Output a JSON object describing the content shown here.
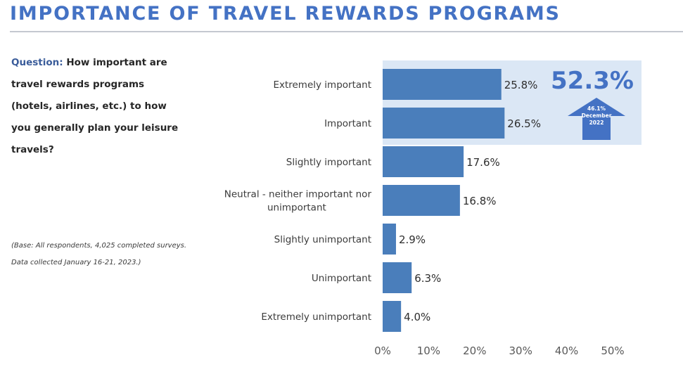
{
  "title": "IMPORTANCE OF TRAVEL REWARDS PROGRAMS",
  "question": {
    "label": "Question:",
    "text": " How important are travel rewards programs (hotels, airlines, etc.) to how you generally plan your leisure travels?"
  },
  "base_note": {
    "line1": "(Base: All respondents, 4,025 completed surveys.",
    "line2": "Data collected January 16-21, 2023.)"
  },
  "colors": {
    "title": "#4472c4",
    "bar": "#4a7ebb",
    "highlight": "#dbe7f5",
    "callout": "#4472c4"
  },
  "callout": {
    "value": "52.3%",
    "arrow_lines": [
      "46.1%",
      "December",
      "2022"
    ]
  },
  "chart_data": {
    "type": "bar",
    "orientation": "horizontal",
    "categories": [
      "Extremely important",
      "Important",
      "Slightly important",
      "Neutral -  neither important nor unimportant",
      "Slightly unimportant",
      "Unimportant",
      "Extremely unimportant"
    ],
    "values": [
      25.8,
      26.5,
      17.6,
      16.8,
      2.9,
      6.3,
      4.0
    ],
    "value_labels": [
      "25.8%",
      "26.5%",
      "17.6%",
      "16.8%",
      "2.9%",
      "6.3%",
      "4.0%"
    ],
    "xlim": [
      0,
      50
    ],
    "xticks": [
      "0%",
      "10%",
      "20%",
      "30%",
      "40%",
      "50%"
    ],
    "highlighted_categories": [
      "Extremely important",
      "Important"
    ],
    "grid": false,
    "legend": "none"
  }
}
